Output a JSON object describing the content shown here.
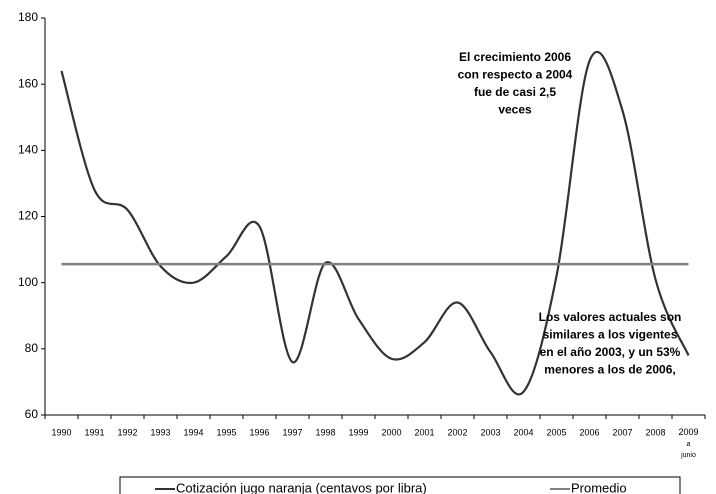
{
  "chart_data": {
    "type": "line",
    "categories": [
      "1990",
      "1991",
      "1992",
      "1993",
      "1994",
      "1995",
      "1996",
      "1997",
      "1998",
      "1999",
      "2000",
      "2001",
      "2002",
      "2003",
      "2004",
      "2005",
      "2006",
      "2007",
      "2008",
      "2009 a junio"
    ],
    "series": [
      {
        "name": "Cotización jugo naranja (centavos por libra)",
        "color": "#333333",
        "values": [
          164,
          128,
          122,
          105,
          100,
          108,
          117,
          76,
          106,
          89,
          77,
          82,
          94,
          79,
          67,
          102,
          167,
          152,
          101,
          78
        ]
      },
      {
        "name": "Promedio",
        "color": "#808080",
        "values": [
          105.6,
          105.6,
          105.6,
          105.6,
          105.6,
          105.6,
          105.6,
          105.6,
          105.6,
          105.6,
          105.6,
          105.6,
          105.6,
          105.6,
          105.6,
          105.6,
          105.6,
          105.6,
          105.6,
          105.6
        ]
      }
    ],
    "ylim": [
      60,
      180
    ],
    "yticks": [
      60,
      80,
      100,
      120,
      140,
      160,
      180
    ],
    "annotations": [
      [
        "El crecimiento 2006",
        "con respecto a 2004",
        "fue de casi 2,5",
        "veces"
      ],
      [
        "Los valores actuales son",
        "similares a los vigentes",
        "en el año 2003, y un 53%",
        "menores a los de 2006,"
      ]
    ]
  }
}
